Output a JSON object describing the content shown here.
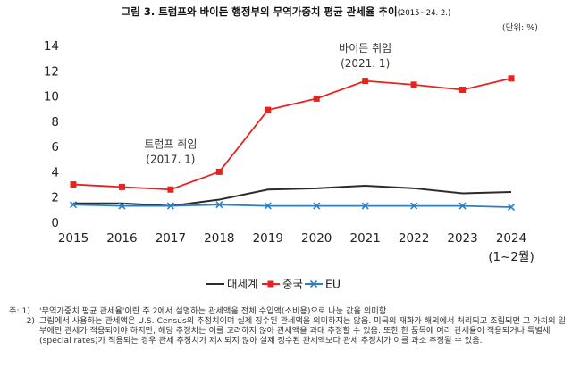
{
  "title_main": "그림 3. 트럼프와 바이든 행정부의 무역가중치 평균 관세율 추이",
  "title_period": "(2015~24. 2.)",
  "unit": "(단위: %)",
  "chart_data": {
    "type": "line",
    "x": [
      "2015",
      "2016",
      "2017",
      "2018",
      "2019",
      "2020",
      "2021",
      "2022",
      "2023",
      "2024"
    ],
    "x_sublabels": [
      "",
      "",
      "",
      "",
      "",
      "",
      "",
      "",
      "",
      "(1~2월)"
    ],
    "ylim": [
      0,
      14
    ],
    "yticks": [
      0,
      2,
      4,
      6,
      8,
      10,
      12,
      14
    ],
    "grid": false,
    "legend_position": "bottom",
    "series": [
      {
        "name": "대세계",
        "color": "#2b2b2b",
        "marker": "none",
        "values": [
          1.5,
          1.5,
          1.3,
          1.8,
          2.6,
          2.7,
          2.9,
          2.7,
          2.3,
          2.4
        ]
      },
      {
        "name": "중국",
        "color": "#e8221f",
        "marker": "square",
        "values": [
          3.0,
          2.8,
          2.6,
          4.0,
          8.9,
          9.8,
          11.2,
          10.9,
          10.5,
          11.4
        ]
      },
      {
        "name": "EU",
        "color": "#2e7fc1",
        "marker": "x",
        "values": [
          1.4,
          1.3,
          1.3,
          1.4,
          1.3,
          1.3,
          1.3,
          1.3,
          1.3,
          1.2
        ]
      }
    ],
    "annotations": [
      {
        "lines": [
          "트럼프 취임",
          "(2017. 1)"
        ],
        "x": "2017",
        "y": 5.9
      },
      {
        "lines": [
          "바이든 취임",
          "(2021. 1)"
        ],
        "x": "2021",
        "y": 13.5
      }
    ]
  },
  "notes": [
    {
      "prefix": "주: 1)",
      "text": "'무역가중치 평균 관세율'이란 주 2에서 설명하는 관세액을 전체 수입액(소비용)으로 나눈 값을 의미함."
    },
    {
      "prefix": "2)",
      "text": "그림에서 사용하는 관세액은 U.S. Census의 추정치이며 실제 징수된 관세액을 의미하지는 않음. 미국의 재화가 해외에서 처리되고 조립되면 그 가치의 일부에만 관세가 적용되어야 하지만, 해당 추정치는 이를 고려하지 않아 관세액을 과대 추정할 수 있음. 또한 한 품목에 여러 관세율이 적용되거나 특별세(special rates)가 적용되는 경우 관세 추정치가 제시되지 않아 실제 징수된 관세액보다 관세 추정치가 이를 과소 추정될 수 있음."
    }
  ]
}
